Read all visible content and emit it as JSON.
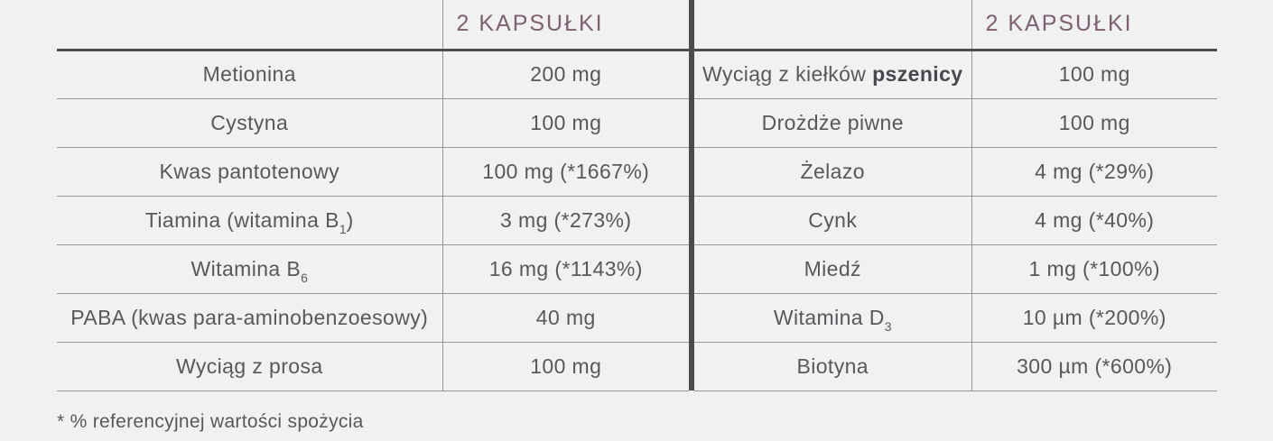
{
  "colors": {
    "background": "#f2f1f2",
    "text": "#57585c",
    "accent": "#7d6071",
    "border_thin": "#97979a",
    "border_dark": "#4b4c4e"
  },
  "left_table": {
    "header": "2 KAPSUŁKI",
    "rows": [
      {
        "label": [
          [
            "t",
            "Metionina"
          ]
        ],
        "value": "200 mg"
      },
      {
        "label": [
          [
            "t",
            "Cystyna"
          ]
        ],
        "value": "100 mg"
      },
      {
        "label": [
          [
            "t",
            "Kwas pantotenowy"
          ]
        ],
        "value": "100 mg (*1667%)"
      },
      {
        "label": [
          [
            "t",
            "Tiamina (witamina B"
          ],
          [
            "sub",
            "1"
          ],
          [
            "t",
            ")"
          ]
        ],
        "value": "3 mg (*273%)"
      },
      {
        "label": [
          [
            "t",
            "Witamina B"
          ],
          [
            "sub",
            "6"
          ]
        ],
        "value": "16 mg (*1143%)"
      },
      {
        "label": [
          [
            "t",
            "PABA (kwas para-aminobenzoesowy)"
          ]
        ],
        "value": "40 mg"
      },
      {
        "label": [
          [
            "t",
            "Wyciąg z prosa"
          ]
        ],
        "value": "100 mg"
      }
    ]
  },
  "right_table": {
    "header": "2 KAPSUŁKI",
    "rows": [
      {
        "label": [
          [
            "t",
            "Wyciąg z kiełków "
          ],
          [
            "b",
            "pszenicy"
          ]
        ],
        "value": "100 mg"
      },
      {
        "label": [
          [
            "t",
            "Drożdże piwne"
          ]
        ],
        "value": "100 mg"
      },
      {
        "label": [
          [
            "t",
            "Żelazo"
          ]
        ],
        "value": "4 mg (*29%)"
      },
      {
        "label": [
          [
            "t",
            "Cynk"
          ]
        ],
        "value": "4 mg (*40%)"
      },
      {
        "label": [
          [
            "t",
            "Miedź"
          ]
        ],
        "value": "1 mg (*100%)"
      },
      {
        "label": [
          [
            "t",
            "Witamina D"
          ],
          [
            "sub",
            "3"
          ]
        ],
        "value": "10 µm (*200%)"
      },
      {
        "label": [
          [
            "t",
            "Biotyna"
          ]
        ],
        "value": "300 µm (*600%)"
      }
    ]
  },
  "footnote": "* % referencyjnej wartości spożycia"
}
